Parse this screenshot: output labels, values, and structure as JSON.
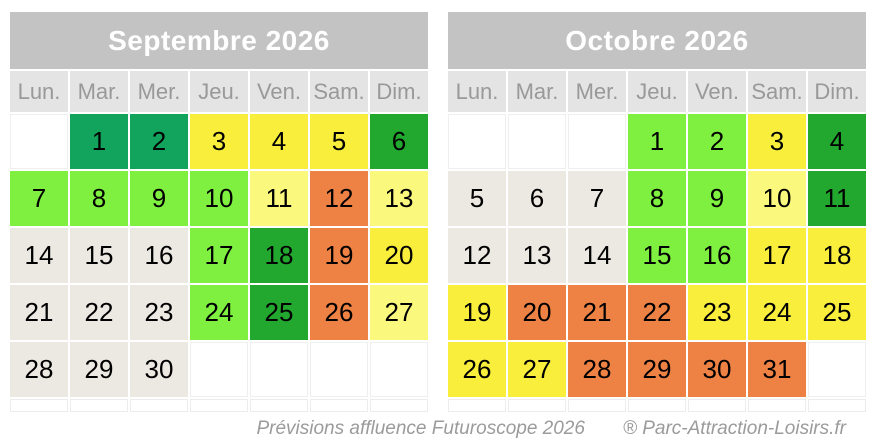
{
  "footer": {
    "caption": "Prévisions affluence Futuroscope 2026",
    "brand": "® Parc-Attraction-Loisirs.fr"
  },
  "weekday_headers": [
    "Lun.",
    "Mar.",
    "Mer.",
    "Jeu.",
    "Ven.",
    "Sam.",
    "Dim."
  ],
  "colors": {
    "very_low": "#12A45C",
    "low": "#22A82F",
    "moderate": "#7FF040",
    "medium": "#F9EE3C",
    "medium_pale": "#FBF87E",
    "high": "#EE8144",
    "no_forecast": "#ECE9E2",
    "empty": "#FFFFFF",
    "title_bg": "#C3C3C3",
    "weekday_bg": "#E4E4E4",
    "weekday_text": "#999999",
    "footer_text": "#9B9B9B"
  },
  "calendars": [
    {
      "title": "Septembre 2026",
      "weeks": [
        [
          {
            "d": "",
            "level": "empty"
          },
          {
            "d": "1",
            "level": "very_low"
          },
          {
            "d": "2",
            "level": "very_low"
          },
          {
            "d": "3",
            "level": "medium"
          },
          {
            "d": "4",
            "level": "medium"
          },
          {
            "d": "5",
            "level": "medium"
          },
          {
            "d": "6",
            "level": "low"
          }
        ],
        [
          {
            "d": "7",
            "level": "moderate"
          },
          {
            "d": "8",
            "level": "moderate"
          },
          {
            "d": "9",
            "level": "moderate"
          },
          {
            "d": "10",
            "level": "moderate"
          },
          {
            "d": "11",
            "level": "medium_pale"
          },
          {
            "d": "12",
            "level": "high"
          },
          {
            "d": "13",
            "level": "medium_pale"
          }
        ],
        [
          {
            "d": "14",
            "level": "no_forecast"
          },
          {
            "d": "15",
            "level": "no_forecast"
          },
          {
            "d": "16",
            "level": "no_forecast"
          },
          {
            "d": "17",
            "level": "moderate"
          },
          {
            "d": "18",
            "level": "low"
          },
          {
            "d": "19",
            "level": "high"
          },
          {
            "d": "20",
            "level": "medium"
          }
        ],
        [
          {
            "d": "21",
            "level": "no_forecast"
          },
          {
            "d": "22",
            "level": "no_forecast"
          },
          {
            "d": "23",
            "level": "no_forecast"
          },
          {
            "d": "24",
            "level": "moderate"
          },
          {
            "d": "25",
            "level": "low"
          },
          {
            "d": "26",
            "level": "high"
          },
          {
            "d": "27",
            "level": "medium_pale"
          }
        ],
        [
          {
            "d": "28",
            "level": "no_forecast"
          },
          {
            "d": "29",
            "level": "no_forecast"
          },
          {
            "d": "30",
            "level": "no_forecast"
          },
          {
            "d": "",
            "level": "empty"
          },
          {
            "d": "",
            "level": "empty"
          },
          {
            "d": "",
            "level": "empty"
          },
          {
            "d": "",
            "level": "empty"
          }
        ]
      ]
    },
    {
      "title": "Octobre 2026",
      "weeks": [
        [
          {
            "d": "",
            "level": "empty"
          },
          {
            "d": "",
            "level": "empty"
          },
          {
            "d": "",
            "level": "empty"
          },
          {
            "d": "1",
            "level": "moderate"
          },
          {
            "d": "2",
            "level": "moderate"
          },
          {
            "d": "3",
            "level": "medium"
          },
          {
            "d": "4",
            "level": "low"
          }
        ],
        [
          {
            "d": "5",
            "level": "no_forecast"
          },
          {
            "d": "6",
            "level": "no_forecast"
          },
          {
            "d": "7",
            "level": "no_forecast"
          },
          {
            "d": "8",
            "level": "moderate"
          },
          {
            "d": "9",
            "level": "moderate"
          },
          {
            "d": "10",
            "level": "medium_pale"
          },
          {
            "d": "11",
            "level": "low"
          }
        ],
        [
          {
            "d": "12",
            "level": "no_forecast"
          },
          {
            "d": "13",
            "level": "no_forecast"
          },
          {
            "d": "14",
            "level": "no_forecast"
          },
          {
            "d": "15",
            "level": "moderate"
          },
          {
            "d": "16",
            "level": "moderate"
          },
          {
            "d": "17",
            "level": "medium"
          },
          {
            "d": "18",
            "level": "medium"
          }
        ],
        [
          {
            "d": "19",
            "level": "medium"
          },
          {
            "d": "20",
            "level": "high"
          },
          {
            "d": "21",
            "level": "high"
          },
          {
            "d": "22",
            "level": "high"
          },
          {
            "d": "23",
            "level": "medium"
          },
          {
            "d": "24",
            "level": "medium"
          },
          {
            "d": "25",
            "level": "medium"
          }
        ],
        [
          {
            "d": "26",
            "level": "medium"
          },
          {
            "d": "27",
            "level": "medium"
          },
          {
            "d": "28",
            "level": "high"
          },
          {
            "d": "29",
            "level": "high"
          },
          {
            "d": "30",
            "level": "high"
          },
          {
            "d": "31",
            "level": "high"
          },
          {
            "d": "",
            "level": "empty"
          }
        ]
      ]
    }
  ]
}
